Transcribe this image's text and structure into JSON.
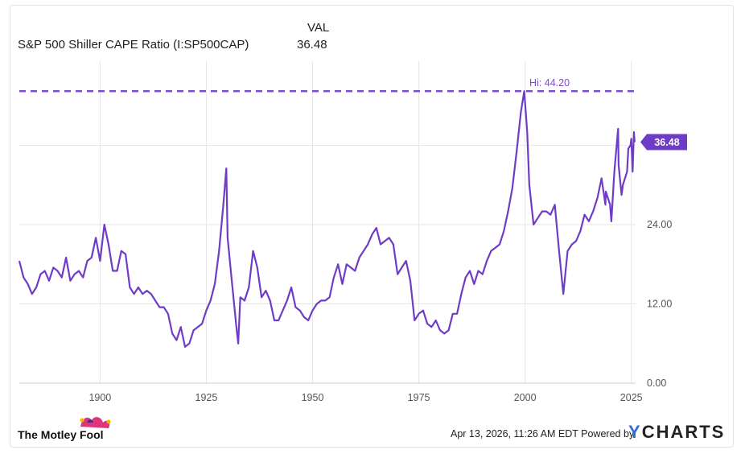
{
  "legend": {
    "header": "VAL",
    "series_name": "S&P 500 Shiller CAPE Ratio (I:SP500CAP)",
    "series_value": "36.48"
  },
  "footer": {
    "logo_text": "The Motley Fool",
    "timestamp": "Apr 13, 2026, 11:26 AM EDT Powered by",
    "brand": "CHARTS",
    "brand_y": "Y"
  },
  "colors": {
    "line": "#6e3cc6",
    "hi_line": "#7b4fc8",
    "badge": "#6e3cc6",
    "grid": "#e6e6e6",
    "tick": "#555555"
  },
  "chart_data": {
    "type": "line",
    "title": "",
    "xlabel": "",
    "ylabel": "",
    "xlim": [
      1881,
      2026
    ],
    "ylim": [
      0,
      48
    ],
    "x_ticks": [
      "1900",
      "1925",
      "1950",
      "1975",
      "2000",
      "2025"
    ],
    "y_ticks": [
      "0.00",
      "12.00",
      "24.00"
    ],
    "grid": true,
    "hi_line": {
      "value": 44.2,
      "label": "Hi: 44.20"
    },
    "last_value": {
      "value": 36.48,
      "label": "36.48"
    },
    "series": [
      {
        "name": "S&P 500 Shiller CAPE Ratio (I:SP500CAP)",
        "x": [
          1881,
          1882,
          1883,
          1884,
          1885,
          1886,
          1887,
          1888,
          1889,
          1890,
          1891,
          1892,
          1893,
          1894,
          1895,
          1896,
          1897,
          1898,
          1899,
          1900,
          1901,
          1902,
          1903,
          1904,
          1905,
          1906,
          1907,
          1908,
          1909,
          1910,
          1911,
          1912,
          1913,
          1914,
          1915,
          1916,
          1917,
          1918,
          1919,
          1920,
          1921,
          1922,
          1923,
          1924,
          1925,
          1926,
          1927,
          1928,
          1929,
          1929.7,
          1930,
          1931,
          1932,
          1932.5,
          1933,
          1934,
          1935,
          1936,
          1937,
          1938,
          1939,
          1940,
          1941,
          1942,
          1943,
          1944,
          1945,
          1946,
          1947,
          1948,
          1949,
          1950,
          1951,
          1952,
          1953,
          1954,
          1955,
          1956,
          1957,
          1958,
          1959,
          1960,
          1961,
          1962,
          1963,
          1964,
          1965,
          1966,
          1967,
          1968,
          1969,
          1970,
          1971,
          1972,
          1973,
          1974,
          1975,
          1976,
          1977,
          1978,
          1979,
          1980,
          1981,
          1982,
          1983,
          1984,
          1985,
          1986,
          1987,
          1988,
          1989,
          1990,
          1991,
          1992,
          1993,
          1994,
          1995,
          1996,
          1997,
          1998,
          1999,
          1999.8,
          2000.5,
          2001,
          2002,
          2003,
          2004,
          2005,
          2006,
          2007,
          2008,
          2009,
          2009.3,
          2010,
          2011,
          2012,
          2013,
          2014,
          2015,
          2016,
          2017,
          2018,
          2018.9,
          2019,
          2020,
          2020.3,
          2021,
          2021.9,
          2022,
          2022.7,
          2023,
          2024,
          2024.3,
          2024.8,
          2025,
          2025.3,
          2025.6,
          2025.8
        ],
        "values": [
          18.5,
          16,
          15,
          13.5,
          14.5,
          16.5,
          17,
          15.5,
          17.5,
          17,
          16,
          19,
          15.5,
          16.5,
          17,
          16,
          18.5,
          19,
          22,
          18.5,
          24,
          21,
          17,
          17,
          20,
          19.5,
          14.5,
          13.5,
          14.5,
          13.5,
          14,
          13.5,
          12.5,
          11.5,
          11.5,
          10.5,
          7.5,
          6.5,
          8.5,
          5.5,
          6,
          8,
          8.5,
          9,
          11,
          12.5,
          15,
          20,
          27,
          32.5,
          22,
          15.5,
          9,
          6,
          13,
          12.5,
          14.5,
          20,
          17.5,
          13,
          14,
          12.5,
          9.5,
          9.5,
          11,
          12.5,
          14.5,
          11.5,
          11,
          10,
          9.5,
          11,
          12,
          12.5,
          12.5,
          13,
          16,
          18,
          15,
          18,
          17.5,
          17,
          19,
          20,
          21,
          22.5,
          23.5,
          21,
          21.5,
          22,
          21,
          16.5,
          17.5,
          18.5,
          15.5,
          9.5,
          10.5,
          11,
          9,
          8.5,
          9.5,
          8,
          7.5,
          8,
          10.5,
          10.5,
          13.5,
          16,
          17,
          15,
          17,
          16.5,
          18.5,
          20,
          20.5,
          21,
          23,
          26,
          29.5,
          35,
          41,
          44.2,
          38,
          30,
          24,
          25,
          26,
          26,
          25.5,
          27,
          20,
          13.5,
          15.5,
          20,
          21,
          21.5,
          23,
          25.5,
          24.5,
          26,
          28,
          31,
          27,
          29,
          27,
          24.5,
          32,
          38.5,
          33,
          28.5,
          30,
          32,
          35.5,
          36,
          37,
          32,
          38,
          36.48
        ]
      }
    ]
  }
}
